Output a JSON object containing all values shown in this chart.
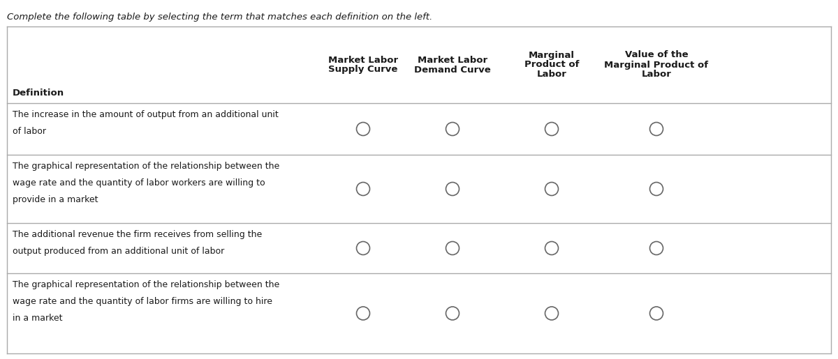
{
  "title": "Complete the following table by selecting the term that matches each definition on the left.",
  "background_color": "#ffffff",
  "table_border_color": "#aaaaaa",
  "text_color": "#1a1a1a",
  "col_headers": [
    [
      "Market Labor",
      "Supply Curve"
    ],
    [
      "Market Labor",
      "Demand Curve"
    ],
    [
      "Marginal",
      "Product of",
      "Labor"
    ],
    [
      "Value of the",
      "Marginal Product of",
      "Labor"
    ]
  ],
  "definitions": [
    "The increase in the amount of output from an additional unit\nof labor",
    "The graphical representation of the relationship between the\nwage rate and the quantity of labor workers are willing to\nprovide in a market",
    "The additional revenue the firm receives from selling the\noutput produced from an additional unit of labor",
    "The graphical representation of the relationship between the\nwage rate and the quantity of labor firms are willing to hire\nin a market"
  ],
  "circle_color": "#666666",
  "fig_width": 12.0,
  "fig_height": 5.15,
  "dpi": 100
}
